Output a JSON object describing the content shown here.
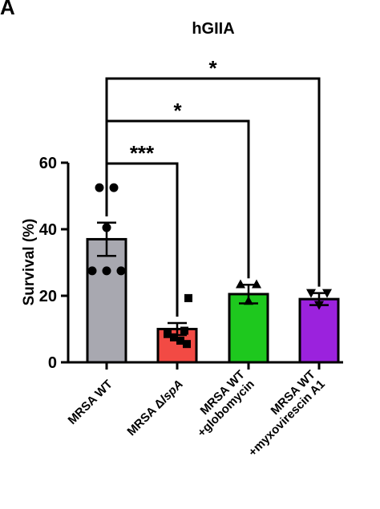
{
  "panel_label": "A",
  "chart_data": {
    "type": "bar",
    "title": "hGIIA",
    "ylabel": "Survival (%)",
    "xlabel": "",
    "ylim": [
      0,
      60
    ],
    "yticks": [
      0,
      20,
      40,
      60
    ],
    "grid": false,
    "categories": [
      {
        "lines": [
          "MRSA WT"
        ],
        "italic_suffix": ""
      },
      {
        "lines": [
          "MRSA Δ"
        ],
        "italic_suffix": "lspA"
      },
      {
        "lines": [
          "MRSA WT",
          "+globomycin"
        ],
        "italic_suffix": ""
      },
      {
        "lines": [
          "MRSA WT",
          "+myxovirescin A1"
        ],
        "italic_suffix": ""
      }
    ],
    "values": [
      37,
      10,
      20.5,
      19
    ],
    "sem": [
      5,
      1.8,
      2.8,
      1.8
    ],
    "colors": [
      "#a8a8b0",
      "#f24a44",
      "#1ec81e",
      "#9b22dd"
    ],
    "point_markers": [
      "circle",
      "square",
      "triangle-up",
      "triangle-down"
    ],
    "points": [
      [
        52.5,
        52.5,
        40.5,
        27.5,
        27.5,
        27.5
      ],
      [
        19.3,
        9.5,
        8.5,
        7.5,
        6.5,
        5.5
      ],
      [
        23.5,
        23.5,
        18.5
      ],
      [
        20.8,
        20.8,
        17.2
      ]
    ],
    "significance": [
      {
        "from": 0,
        "to": 1,
        "label": "***"
      },
      {
        "from": 0,
        "to": 2,
        "label": "*"
      },
      {
        "from": 0,
        "to": 3,
        "label": "*"
      }
    ]
  }
}
